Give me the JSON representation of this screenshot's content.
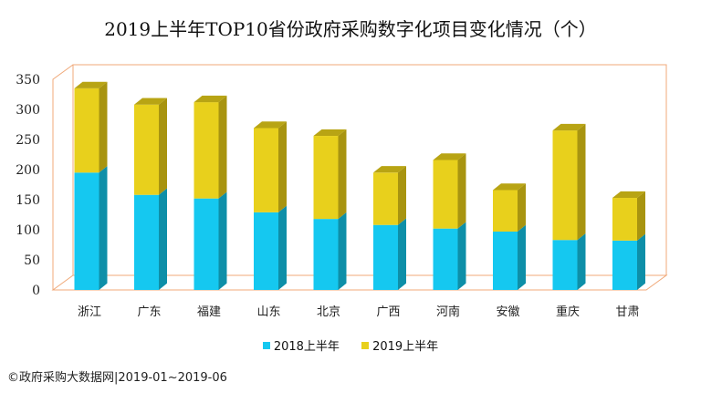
{
  "source_note": "©政府采购大数据网|2019-01~2019-06",
  "chart_data": {
    "type": "bar",
    "stacked": true,
    "title": "2019上半年TOP10省份政府采购数字化项目变化情况（个）",
    "categories": [
      "浙江",
      "广东",
      "福建",
      "山东",
      "北京",
      "广西",
      "河南",
      "安徽",
      "重庆",
      "甘肃"
    ],
    "series": [
      {
        "name": "2018上半年",
        "color": "#15c8f0",
        "side_color": "#0e8fa8",
        "top_color": "#13b0d2",
        "values": [
          195,
          158,
          152,
          129,
          118,
          108,
          102,
          97,
          83,
          82
        ]
      },
      {
        "name": "2019上半年",
        "color": "#e8d01c",
        "side_color": "#a89410",
        "top_color": "#b8a414",
        "values": [
          140,
          150,
          160,
          140,
          138,
          87,
          114,
          69,
          182,
          71
        ]
      }
    ],
    "ylim": [
      0,
      350
    ],
    "yticks": [
      0,
      50,
      100,
      150,
      200,
      250,
      300,
      350
    ],
    "grid": false,
    "legend_position": "bottom",
    "axis_color": "#f0a878"
  }
}
